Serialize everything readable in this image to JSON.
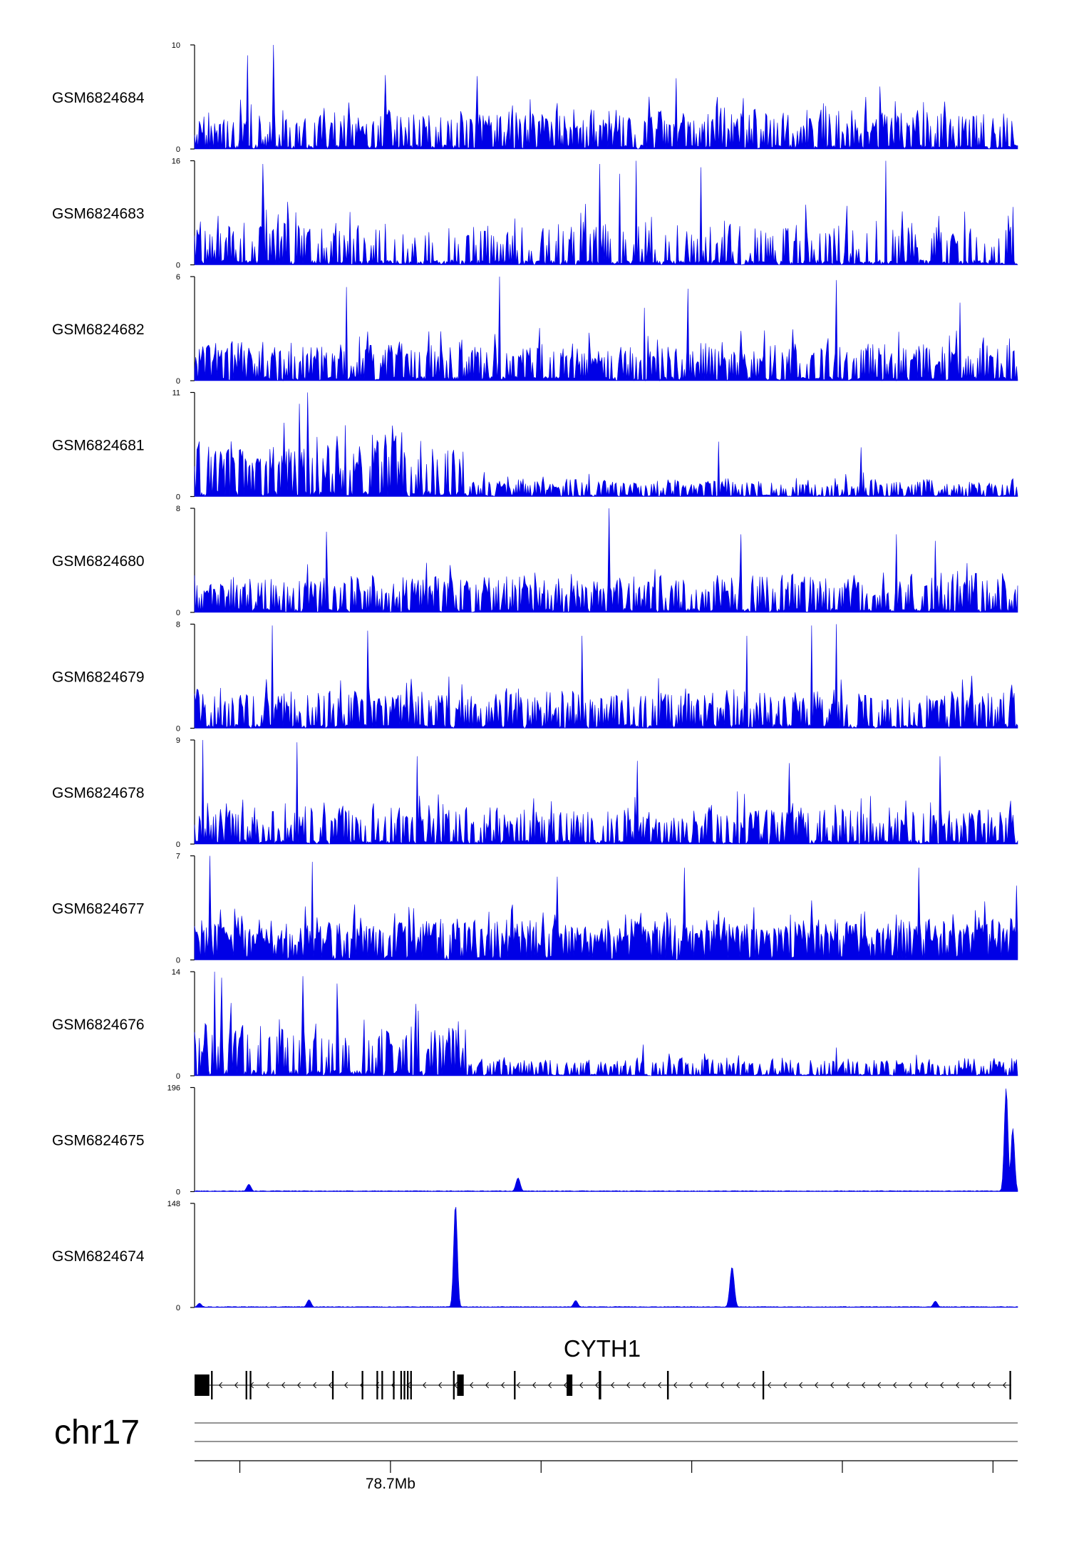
{
  "chart_data": {
    "type": "area",
    "fill_color": "#0000e6",
    "tracks": [
      {
        "name": "GSM6824684",
        "ymax": 10,
        "ymin": 0,
        "profile": "noisy",
        "seed": 11,
        "peaks": [
          [
            0.065,
            9.0
          ],
          [
            0.096,
            10.0
          ],
          [
            0.232,
            7.1
          ],
          [
            0.344,
            7.0
          ],
          [
            0.585,
            6.8
          ],
          [
            0.833,
            6.0
          ]
        ]
      },
      {
        "name": "GSM6824683",
        "ymax": 16,
        "ymin": 0,
        "profile": "noisy-sparse",
        "seed": 23,
        "peaks": [
          [
            0.083,
            15.5
          ],
          [
            0.492,
            15.5
          ],
          [
            0.517,
            14.0
          ],
          [
            0.537,
            16.0
          ],
          [
            0.615,
            15.0
          ],
          [
            0.84,
            16.0
          ]
        ]
      },
      {
        "name": "GSM6824682",
        "ymax": 6,
        "ymin": 0,
        "profile": "noisy",
        "seed": 37,
        "peaks": [
          [
            0.185,
            5.4
          ],
          [
            0.371,
            6.0
          ],
          [
            0.546,
            4.2
          ],
          [
            0.6,
            5.3
          ],
          [
            0.78,
            5.8
          ],
          [
            0.93,
            4.5
          ]
        ]
      },
      {
        "name": "GSM6824681",
        "ymax": 11,
        "ymin": 0,
        "profile": "left-high",
        "seed": 41,
        "peaks": [
          [
            0.137,
            11.0
          ],
          [
            0.127,
            9.8
          ],
          [
            0.241,
            7.5
          ],
          [
            0.637,
            5.8
          ],
          [
            0.81,
            5.2
          ]
        ]
      },
      {
        "name": "GSM6824680",
        "ymax": 8,
        "ymin": 0,
        "profile": "noisy",
        "seed": 53,
        "peaks": [
          [
            0.16,
            6.2
          ],
          [
            0.504,
            8.0
          ],
          [
            0.664,
            6.0
          ],
          [
            0.852,
            6.0
          ],
          [
            0.9,
            5.5
          ]
        ]
      },
      {
        "name": "GSM6824679",
        "ymax": 8,
        "ymin": 0,
        "profile": "noisy",
        "seed": 61,
        "peaks": [
          [
            0.094,
            7.9
          ],
          [
            0.21,
            7.5
          ],
          [
            0.47,
            7.1
          ],
          [
            0.671,
            7.1
          ],
          [
            0.749,
            7.9
          ],
          [
            0.78,
            8.0
          ]
        ]
      },
      {
        "name": "GSM6824678",
        "ymax": 9,
        "ymin": 0,
        "profile": "noisy",
        "seed": 71,
        "peaks": [
          [
            0.01,
            9.0
          ],
          [
            0.124,
            8.8
          ],
          [
            0.27,
            7.6
          ],
          [
            0.538,
            7.2
          ],
          [
            0.722,
            7.0
          ],
          [
            0.905,
            7.6
          ]
        ]
      },
      {
        "name": "GSM6824677",
        "ymax": 7,
        "ymin": 0,
        "profile": "noisy-dense",
        "seed": 83,
        "peaks": [
          [
            0.018,
            7.0
          ],
          [
            0.143,
            6.6
          ],
          [
            0.44,
            5.6
          ],
          [
            0.595,
            6.2
          ],
          [
            0.88,
            6.2
          ],
          [
            0.998,
            5.0
          ]
        ]
      },
      {
        "name": "GSM6824676",
        "ymax": 14,
        "ymin": 0,
        "profile": "left-high",
        "seed": 97,
        "peaks": [
          [
            0.025,
            14.0
          ],
          [
            0.033,
            13.2
          ],
          [
            0.132,
            13.4
          ],
          [
            0.173,
            12.4
          ],
          [
            0.545,
            4.2
          ],
          [
            0.78,
            3.8
          ]
        ]
      },
      {
        "name": "GSM6824675",
        "ymax": 196,
        "ymin": 0,
        "profile": "flat-peaks",
        "seed": 101,
        "peaks": [
          [
            0.066,
            14.0
          ],
          [
            0.393,
            26.0
          ],
          [
            0.986,
            196.0
          ],
          [
            0.994,
            120.0
          ]
        ]
      },
      {
        "name": "GSM6824674",
        "ymax": 148,
        "ymin": 0,
        "profile": "flat-peaks",
        "seed": 113,
        "peaks": [
          [
            0.317,
            148.0
          ],
          [
            0.653,
            58.0
          ],
          [
            0.139,
            11.0
          ],
          [
            0.463,
            10.0
          ],
          [
            0.9,
            9.0
          ],
          [
            0.006,
            6.0
          ]
        ]
      }
    ],
    "gene_track": {
      "gene": "CYTH1",
      "strand": "-",
      "line_span": [
        0.0,
        0.992
      ],
      "exons": [
        [
          0.0,
          0.018
        ],
        [
          0.02,
          0.022
        ],
        [
          0.062,
          0.064
        ],
        [
          0.067,
          0.069
        ],
        [
          0.167,
          0.169
        ],
        [
          0.203,
          0.205
        ],
        [
          0.221,
          0.223
        ],
        [
          0.227,
          0.229
        ],
        [
          0.241,
          0.243
        ],
        [
          0.25,
          0.252
        ],
        [
          0.254,
          0.256
        ],
        [
          0.258,
          0.26
        ],
        [
          0.262,
          0.264
        ],
        [
          0.314,
          0.316
        ],
        [
          0.319,
          0.327
        ],
        [
          0.388,
          0.39
        ],
        [
          0.452,
          0.459
        ],
        [
          0.491,
          0.494
        ],
        [
          0.574,
          0.576
        ],
        [
          0.574,
          0.576
        ],
        [
          0.69,
          0.692
        ],
        [
          0.99,
          0.992
        ]
      ]
    },
    "chromosome": "chr17",
    "x_axis": {
      "tick_positions": [
        0.055,
        0.238,
        0.421,
        0.604,
        0.787,
        0.97
      ],
      "tick_labels": [
        "",
        "78.7Mb",
        "",
        "",
        "",
        ""
      ]
    }
  }
}
